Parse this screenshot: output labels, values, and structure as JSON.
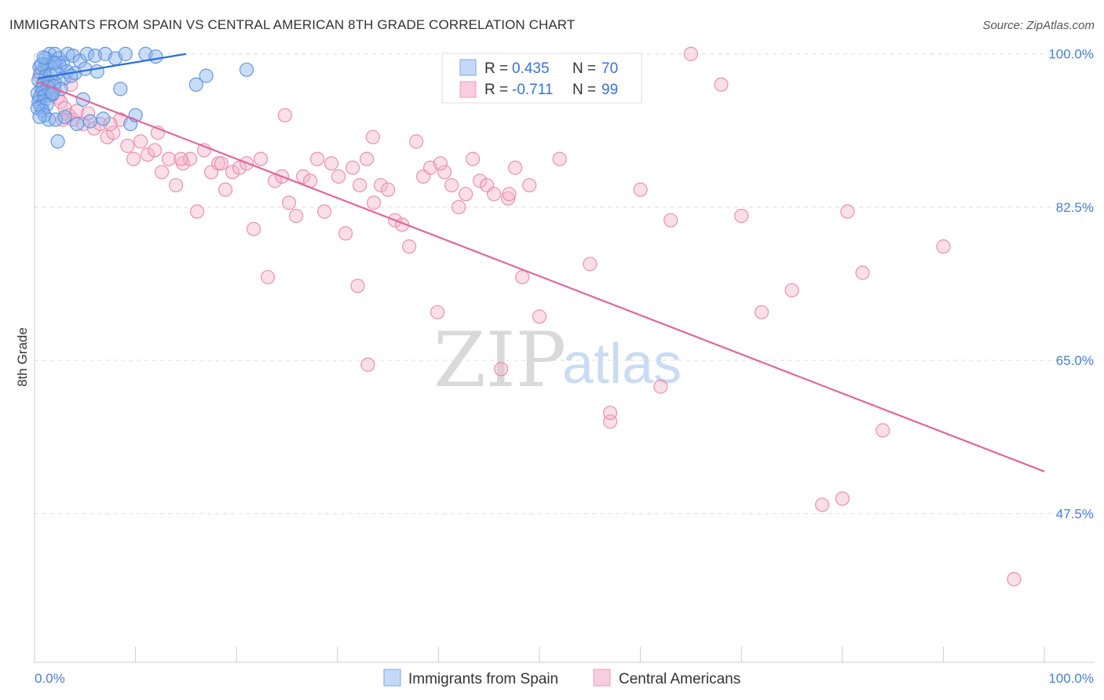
{
  "title": "IMMIGRANTS FROM SPAIN VS CENTRAL AMERICAN 8TH GRADE CORRELATION CHART",
  "source": "Source: ZipAtlas.com",
  "watermark": {
    "zip": "ZIP",
    "atlas": "atlas"
  },
  "chart_data": {
    "type": "scatter",
    "title": "IMMIGRANTS FROM SPAIN VS CENTRAL AMERICAN 8TH GRADE CORRELATION CHART",
    "xlabel": "",
    "ylabel": "8th Grade",
    "xlim": [
      0,
      100
    ],
    "ylim": [
      30.5,
      101.5
    ],
    "x_tick_labels": {
      "left": "0.0%",
      "right": "100.0%"
    },
    "y_ticks": [
      {
        "value": 100.0,
        "label": "100.0%"
      },
      {
        "value": 82.5,
        "label": "82.5%"
      },
      {
        "value": 65.0,
        "label": "65.0%"
      },
      {
        "value": 47.5,
        "label": "47.5%"
      }
    ],
    "grid": true,
    "legend_position": "top-center",
    "series": [
      {
        "name": "Immigrants from Spain",
        "color": "#8ab4ee",
        "edge_color": "#5a8fdc",
        "line_color": "#2e6fd2",
        "R": "0.435",
        "N": "70",
        "trend": {
          "x0": 0.3,
          "y0": 97.2,
          "x1": 15.0,
          "y1": 100.0
        },
        "x": [
          1.0,
          1.5,
          2.0,
          2.4,
          2.8,
          3.3,
          3.8,
          4.5,
          5.2,
          6.0,
          7.0,
          8.0,
          9.0,
          11.0,
          12.0,
          0.5,
          1.2,
          1.8,
          2.5,
          3.2,
          4.0,
          5.0,
          0.6,
          1.1,
          1.6,
          2.2,
          2.9,
          3.6,
          0.4,
          0.9,
          1.4,
          2.0,
          0.7,
          1.3,
          1.9,
          2.6,
          0.3,
          0.8,
          1.5,
          0.5,
          1.0,
          1.7,
          0.4,
          0.9,
          0.6,
          1.2,
          0.8,
          0.3,
          1.0,
          1.4,
          0.5,
          2.1,
          3.0,
          4.2,
          5.5,
          6.8,
          9.5,
          10.0,
          17.0,
          21.0,
          16.0,
          8.5,
          1.8,
          2.3,
          6.2,
          2.0,
          1.1,
          0.7,
          4.8,
          0.9
        ],
        "y": [
          98.5,
          100.0,
          100.0,
          99.5,
          99.0,
          100.0,
          99.8,
          99.2,
          100.0,
          99.8,
          100.0,
          99.5,
          100.0,
          100.0,
          99.7,
          98.5,
          98.8,
          99.0,
          98.6,
          98.0,
          97.8,
          98.3,
          97.8,
          97.5,
          97.6,
          97.8,
          97.2,
          97.5,
          97.0,
          96.5,
          96.8,
          96.7,
          96.0,
          96.2,
          96.3,
          96.0,
          95.5,
          95.6,
          95.5,
          95.0,
          95.2,
          95.3,
          94.5,
          94.6,
          94.0,
          94.2,
          93.5,
          93.8,
          93.0,
          92.5,
          92.8,
          92.5,
          92.8,
          92.0,
          92.3,
          92.6,
          92.0,
          93.0,
          97.5,
          98.2,
          96.5,
          96.0,
          95.5,
          90.0,
          98.0,
          99.0,
          99.5,
          98.8,
          94.8,
          99.6
        ]
      },
      {
        "name": "Central Americans",
        "color": "#f5b6cc",
        "edge_color": "#e888a8",
        "line_color": "#e2679a",
        "R": "-0.711",
        "N": "99",
        "trend": {
          "x0": 0.3,
          "y0": 96.8,
          "x1": 100.0,
          "y1": 52.3
        },
        "x": [
          0.5,
          0.8,
          1.0,
          1.3,
          1.6,
          2.0,
          2.3,
          2.6,
          3.0,
          3.4,
          3.8,
          4.2,
          4.8,
          5.3,
          5.9,
          6.5,
          7.2,
          7.8,
          8.5,
          9.2,
          9.8,
          10.5,
          11.2,
          11.9,
          12.6,
          13.3,
          14.0,
          14.7,
          15.4,
          16.1,
          16.8,
          17.5,
          18.2,
          18.9,
          19.6,
          20.3,
          21.0,
          21.7,
          22.4,
          23.1,
          23.8,
          24.5,
          25.2,
          25.9,
          26.6,
          27.3,
          28.0,
          28.7,
          29.4,
          30.1,
          30.8,
          31.5,
          32.2,
          32.9,
          33.6,
          34.3,
          35.0,
          35.7,
          36.4,
          37.1,
          37.8,
          38.5,
          39.2,
          39.9,
          40.6,
          41.3,
          42.0,
          42.7,
          43.4,
          44.1,
          44.8,
          45.5,
          46.2,
          46.9,
          47.6,
          48.3,
          49.0,
          55.0,
          60.0,
          63.0,
          65.0,
          70.0,
          75.0,
          82.0,
          90.0,
          3.6,
          7.5,
          12.2,
          18.5,
          24.8,
          33.5,
          40.2,
          47.0,
          52.0,
          57.0,
          62.0,
          68.0,
          2.8,
          14.5
        ],
        "y": [
          97.5,
          96.5,
          97.0,
          96.0,
          95.5,
          96.0,
          95.0,
          94.5,
          93.8,
          93.0,
          92.5,
          93.5,
          92.0,
          93.2,
          91.5,
          92.0,
          90.5,
          91.0,
          92.5,
          89.5,
          88.0,
          90.0,
          88.5,
          89.0,
          86.5,
          88.0,
          85.0,
          87.5,
          88.0,
          82.0,
          89.0,
          86.5,
          87.5,
          84.5,
          86.5,
          87.0,
          87.5,
          80.0,
          88.0,
          74.5,
          85.5,
          86.0,
          83.0,
          81.5,
          86.0,
          85.5,
          88.0,
          82.0,
          87.5,
          86.0,
          79.5,
          87.0,
          85.0,
          88.0,
          83.0,
          85.0,
          84.5,
          81.0,
          80.5,
          78.0,
          90.0,
          86.0,
          87.0,
          70.5,
          86.5,
          85.0,
          82.5,
          84.0,
          88.0,
          85.5,
          85.0,
          84.0,
          64.0,
          83.5,
          87.0,
          74.5,
          85.0,
          76.0,
          84.5,
          81.0,
          100.0,
          81.5,
          73.0,
          75.0,
          78.0,
          96.5,
          92.0,
          91.0,
          87.5,
          93.0,
          90.5,
          87.5,
          84.0,
          88.0,
          58.0,
          62.0,
          96.5,
          92.5,
          88.0
        ]
      }
    ]
  },
  "legend": {
    "r_label": "R =",
    "n_label": "N =",
    "items": [
      {
        "name": "Immigrants from Spain"
      },
      {
        "name": "Central Americans"
      }
    ]
  },
  "outliers": {
    "x": [
      50.0,
      57.0,
      78.0,
      80.0,
      72.0,
      84.0,
      80.5,
      97.0,
      32.0,
      33.0
    ],
    "y": [
      70.0,
      59.0,
      48.5,
      49.2,
      70.5,
      57.0,
      82.0,
      40.0,
      73.5,
      64.5
    ]
  }
}
